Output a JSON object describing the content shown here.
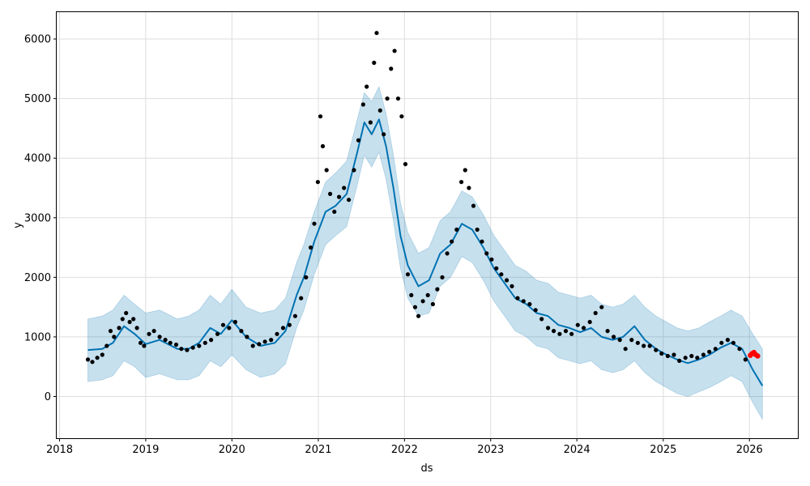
{
  "chart_data": {
    "type": "scatter",
    "title": "",
    "xlabel": "ds",
    "ylabel": "y",
    "x_ticks": [
      "2018",
      "2019",
      "2020",
      "2021",
      "2022",
      "2023",
      "2024",
      "2025",
      "2026"
    ],
    "y_ticks": [
      0,
      1000,
      2000,
      3000,
      4000,
      5000,
      6000
    ],
    "xlim": [
      "2017-12-20",
      "2026-07-25"
    ],
    "ylim": [
      -700,
      6450
    ],
    "grid": true,
    "colors": {
      "observed": "#000000",
      "forecast_line": "#0072B2",
      "uncertainty_band": "#0072B2",
      "highlighted": "#ff0000"
    },
    "series": [
      {
        "role": "observed",
        "points": [
          [
            "2018-05-01",
            620
          ],
          [
            "2018-05-20",
            580
          ],
          [
            "2018-06-10",
            650
          ],
          [
            "2018-07-01",
            700
          ],
          [
            "2018-07-20",
            850
          ],
          [
            "2018-08-05",
            1100
          ],
          [
            "2018-08-20",
            1000
          ],
          [
            "2018-09-10",
            1150
          ],
          [
            "2018-09-25",
            1300
          ],
          [
            "2018-10-10",
            1400
          ],
          [
            "2018-10-25",
            1250
          ],
          [
            "2018-11-10",
            1300
          ],
          [
            "2018-11-25",
            1150
          ],
          [
            "2018-12-10",
            900
          ],
          [
            "2018-12-25",
            850
          ],
          [
            "2019-01-15",
            1050
          ],
          [
            "2019-02-05",
            1100
          ],
          [
            "2019-03-01",
            1000
          ],
          [
            "2019-03-25",
            950
          ],
          [
            "2019-04-15",
            900
          ],
          [
            "2019-05-10",
            870
          ],
          [
            "2019-06-01",
            800
          ],
          [
            "2019-06-25",
            780
          ],
          [
            "2019-07-20",
            820
          ],
          [
            "2019-08-15",
            850
          ],
          [
            "2019-09-10",
            900
          ],
          [
            "2019-10-05",
            950
          ],
          [
            "2019-11-01",
            1050
          ],
          [
            "2019-11-25",
            1200
          ],
          [
            "2019-12-20",
            1150
          ],
          [
            "2020-01-15",
            1250
          ],
          [
            "2020-02-10",
            1100
          ],
          [
            "2020-03-05",
            1000
          ],
          [
            "2020-03-30",
            850
          ],
          [
            "2020-04-25",
            880
          ],
          [
            "2020-05-20",
            920
          ],
          [
            "2020-06-15",
            950
          ],
          [
            "2020-07-10",
            1050
          ],
          [
            "2020-08-05",
            1150
          ],
          [
            "2020-09-01",
            1200
          ],
          [
            "2020-09-25",
            1350
          ],
          [
            "2020-10-20",
            1650
          ],
          [
            "2020-11-10",
            2000
          ],
          [
            "2020-11-30",
            2500
          ],
          [
            "2020-12-15",
            2900
          ],
          [
            "2020-12-30",
            3600
          ],
          [
            "2021-01-10",
            4700
          ],
          [
            "2021-01-20",
            4200
          ],
          [
            "2021-02-05",
            3800
          ],
          [
            "2021-02-20",
            3400
          ],
          [
            "2021-03-10",
            3100
          ],
          [
            "2021-03-30",
            3350
          ],
          [
            "2021-04-20",
            3500
          ],
          [
            "2021-05-10",
            3300
          ],
          [
            "2021-06-01",
            3800
          ],
          [
            "2021-06-20",
            4300
          ],
          [
            "2021-07-10",
            4900
          ],
          [
            "2021-07-25",
            5200
          ],
          [
            "2021-08-10",
            4600
          ],
          [
            "2021-08-25",
            5600
          ],
          [
            "2021-09-05",
            6100
          ],
          [
            "2021-09-20",
            4800
          ],
          [
            "2021-10-05",
            4400
          ],
          [
            "2021-10-20",
            5000
          ],
          [
            "2021-11-05",
            5500
          ],
          [
            "2021-11-20",
            5800
          ],
          [
            "2021-12-05",
            5000
          ],
          [
            "2021-12-20",
            4700
          ],
          [
            "2022-01-05",
            3900
          ],
          [
            "2022-01-15",
            2050
          ],
          [
            "2022-01-30",
            1700
          ],
          [
            "2022-02-15",
            1500
          ],
          [
            "2022-03-01",
            1350
          ],
          [
            "2022-03-20",
            1600
          ],
          [
            "2022-04-10",
            1700
          ],
          [
            "2022-05-01",
            1550
          ],
          [
            "2022-05-20",
            1800
          ],
          [
            "2022-06-10",
            2000
          ],
          [
            "2022-07-01",
            2400
          ],
          [
            "2022-07-20",
            2600
          ],
          [
            "2022-08-10",
            2800
          ],
          [
            "2022-08-30",
            3600
          ],
          [
            "2022-09-15",
            3800
          ],
          [
            "2022-10-01",
            3500
          ],
          [
            "2022-10-20",
            3200
          ],
          [
            "2022-11-05",
            2800
          ],
          [
            "2022-11-25",
            2600
          ],
          [
            "2022-12-15",
            2400
          ],
          [
            "2023-01-05",
            2300
          ],
          [
            "2023-01-25",
            2150
          ],
          [
            "2023-02-15",
            2050
          ],
          [
            "2023-03-10",
            1950
          ],
          [
            "2023-04-01",
            1850
          ],
          [
            "2023-04-25",
            1650
          ],
          [
            "2023-05-20",
            1600
          ],
          [
            "2023-06-15",
            1550
          ],
          [
            "2023-07-10",
            1450
          ],
          [
            "2023-08-05",
            1300
          ],
          [
            "2023-09-01",
            1150
          ],
          [
            "2023-09-25",
            1100
          ],
          [
            "2023-10-20",
            1050
          ],
          [
            "2023-11-15",
            1100
          ],
          [
            "2023-12-10",
            1050
          ],
          [
            "2024-01-05",
            1200
          ],
          [
            "2024-01-30",
            1150
          ],
          [
            "2024-02-25",
            1250
          ],
          [
            "2024-03-20",
            1400
          ],
          [
            "2024-04-15",
            1500
          ],
          [
            "2024-05-10",
            1100
          ],
          [
            "2024-06-05",
            1000
          ],
          [
            "2024-07-01",
            950
          ],
          [
            "2024-07-25",
            800
          ],
          [
            "2024-08-20",
            950
          ],
          [
            "2024-09-15",
            900
          ],
          [
            "2024-10-10",
            850
          ],
          [
            "2024-11-05",
            850
          ],
          [
            "2024-12-01",
            780
          ],
          [
            "2024-12-25",
            720
          ],
          [
            "2025-01-20",
            680
          ],
          [
            "2025-02-15",
            700
          ],
          [
            "2025-03-10",
            600
          ],
          [
            "2025-04-05",
            650
          ],
          [
            "2025-05-01",
            680
          ],
          [
            "2025-05-25",
            650
          ],
          [
            "2025-06-20",
            700
          ],
          [
            "2025-07-15",
            750
          ],
          [
            "2025-08-10",
            800
          ],
          [
            "2025-09-05",
            900
          ],
          [
            "2025-10-01",
            950
          ],
          [
            "2025-10-25",
            900
          ],
          [
            "2025-11-20",
            800
          ],
          [
            "2025-12-15",
            620
          ]
        ]
      },
      {
        "role": "highlighted",
        "points": [
          [
            "2026-01-05",
            690
          ],
          [
            "2026-01-12",
            720
          ],
          [
            "2026-01-20",
            740
          ],
          [
            "2026-01-28",
            700
          ],
          [
            "2026-02-05",
            680
          ]
        ]
      },
      {
        "role": "forecast",
        "points": [
          [
            "2018-05-01",
            780,
            1300,
            250
          ],
          [
            "2018-07-01",
            800,
            1350,
            280
          ],
          [
            "2018-08-15",
            900,
            1450,
            350
          ],
          [
            "2018-10-01",
            1180,
            1700,
            600
          ],
          [
            "2018-11-15",
            1050,
            1550,
            500
          ],
          [
            "2019-01-01",
            880,
            1400,
            320
          ],
          [
            "2019-03-01",
            950,
            1450,
            380
          ],
          [
            "2019-05-15",
            800,
            1300,
            280
          ],
          [
            "2019-07-01",
            800,
            1350,
            280
          ],
          [
            "2019-08-15",
            900,
            1450,
            350
          ],
          [
            "2019-10-01",
            1150,
            1700,
            600
          ],
          [
            "2019-11-15",
            1050,
            1550,
            500
          ],
          [
            "2020-01-01",
            1280,
            1800,
            700
          ],
          [
            "2020-03-01",
            1000,
            1500,
            450
          ],
          [
            "2020-05-01",
            850,
            1400,
            320
          ],
          [
            "2020-07-01",
            900,
            1450,
            380
          ],
          [
            "2020-08-15",
            1100,
            1650,
            550
          ],
          [
            "2020-10-01",
            1700,
            2250,
            1150
          ],
          [
            "2020-11-01",
            2000,
            2550,
            1450
          ],
          [
            "2020-12-15",
            2600,
            3100,
            2050
          ],
          [
            "2021-02-01",
            3100,
            3600,
            2550
          ],
          [
            "2021-03-15",
            3200,
            3750,
            2700
          ],
          [
            "2021-05-01",
            3400,
            3950,
            2850
          ],
          [
            "2021-06-15",
            4100,
            4650,
            3550
          ],
          [
            "2021-07-15",
            4600,
            5100,
            4050
          ],
          [
            "2021-08-15",
            4400,
            4950,
            3850
          ],
          [
            "2021-09-15",
            4650,
            5200,
            4100
          ],
          [
            "2021-10-15",
            4200,
            4750,
            3650
          ],
          [
            "2021-11-15",
            3500,
            4050,
            2950
          ],
          [
            "2021-12-15",
            2700,
            3250,
            2150
          ],
          [
            "2022-01-15",
            2200,
            2750,
            1650
          ],
          [
            "2022-03-01",
            1850,
            2400,
            1350
          ],
          [
            "2022-04-15",
            1950,
            2500,
            1400
          ],
          [
            "2022-06-01",
            2400,
            2950,
            1850
          ],
          [
            "2022-07-15",
            2550,
            3100,
            2000
          ],
          [
            "2022-09-01",
            2900,
            3450,
            2350
          ],
          [
            "2022-10-15",
            2800,
            3350,
            2250
          ],
          [
            "2022-12-01",
            2500,
            3050,
            1950
          ],
          [
            "2023-01-15",
            2150,
            2700,
            1600
          ],
          [
            "2023-03-01",
            1900,
            2450,
            1350
          ],
          [
            "2023-04-15",
            1650,
            2200,
            1100
          ],
          [
            "2023-06-01",
            1550,
            2100,
            1000
          ],
          [
            "2023-07-15",
            1400,
            1950,
            850
          ],
          [
            "2023-09-01",
            1350,
            1900,
            800
          ],
          [
            "2023-10-15",
            1200,
            1750,
            650
          ],
          [
            "2023-12-01",
            1150,
            1700,
            600
          ],
          [
            "2024-01-15",
            1080,
            1650,
            550
          ],
          [
            "2024-03-01",
            1150,
            1700,
            600
          ],
          [
            "2024-04-15",
            1000,
            1550,
            450
          ],
          [
            "2024-06-01",
            950,
            1500,
            400
          ],
          [
            "2024-07-15",
            1000,
            1550,
            450
          ],
          [
            "2024-09-01",
            1180,
            1700,
            600
          ],
          [
            "2024-10-15",
            950,
            1500,
            400
          ],
          [
            "2024-12-01",
            800,
            1350,
            250
          ],
          [
            "2025-01-15",
            700,
            1250,
            150
          ],
          [
            "2025-03-01",
            620,
            1150,
            50
          ],
          [
            "2025-04-15",
            560,
            1100,
            0
          ],
          [
            "2025-06-01",
            620,
            1150,
            80
          ],
          [
            "2025-07-15",
            700,
            1250,
            150
          ],
          [
            "2025-09-01",
            820,
            1350,
            250
          ],
          [
            "2025-10-15",
            900,
            1450,
            350
          ],
          [
            "2025-12-01",
            800,
            1350,
            250
          ],
          [
            "2026-01-15",
            450,
            1050,
            -100
          ],
          [
            "2026-02-25",
            180,
            800,
            -380
          ]
        ]
      }
    ]
  }
}
